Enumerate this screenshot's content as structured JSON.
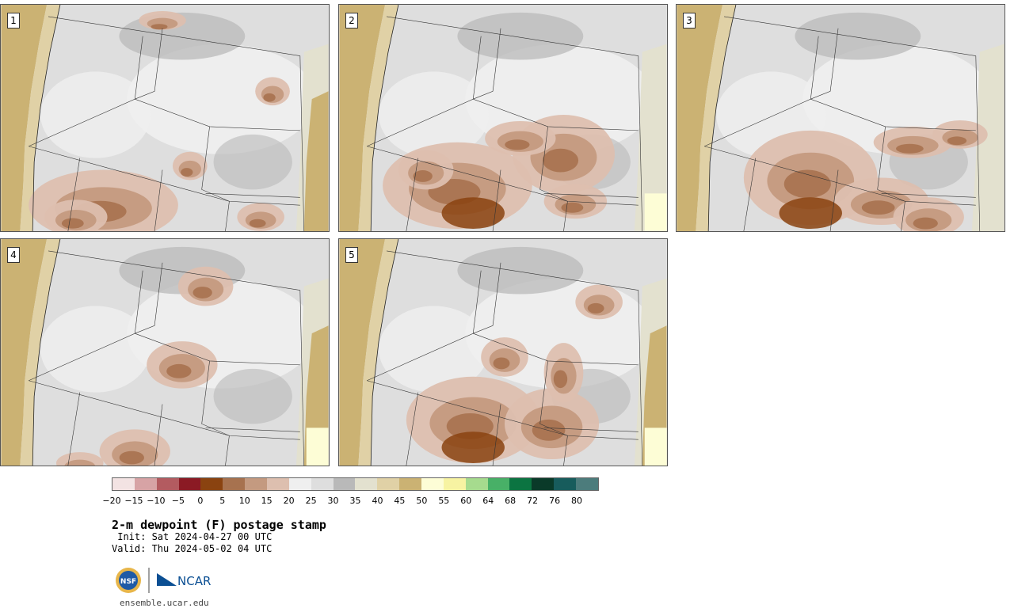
{
  "panels": [
    {
      "number": "1",
      "variant": 1
    },
    {
      "number": "2",
      "variant": 2
    },
    {
      "number": "3",
      "variant": 3
    },
    {
      "number": "4",
      "variant": 4
    },
    {
      "number": "5",
      "variant": 5
    }
  ],
  "colorbar": {
    "colors": [
      "#f3e3e3",
      "#d7a3a5",
      "#b35b60",
      "#8b1a24",
      "#8a4310",
      "#a7724f",
      "#c49a80",
      "#ddbfaf",
      "#efefef",
      "#dedede",
      "#b9b9b9",
      "#e3e1cf",
      "#e0d1a6",
      "#cbb273",
      "#fdfdd6",
      "#f7f3a2",
      "#a6db8e",
      "#48b067",
      "#0b7441",
      "#0a3a29",
      "#175c5c",
      "#4c7c7c"
    ],
    "tick_labels": [
      "−20",
      "−15",
      "−10",
      "−5",
      "0",
      "5",
      "10",
      "15",
      "20",
      "25",
      "30",
      "35",
      "40",
      "45",
      "50",
      "55",
      "60",
      "64",
      "68",
      "72",
      "76",
      "80"
    ]
  },
  "title": "2-m dewpoint (F) postage stamp",
  "init_line": " Init: Sat 2024-04-27 00 UTC",
  "valid_line": "Valid: Thu 2024-05-02 04 UTC",
  "logo": {
    "nsf_text": "NSF",
    "ncar_text": "NCAR"
  },
  "website": "ensemble.ucar.edu"
}
